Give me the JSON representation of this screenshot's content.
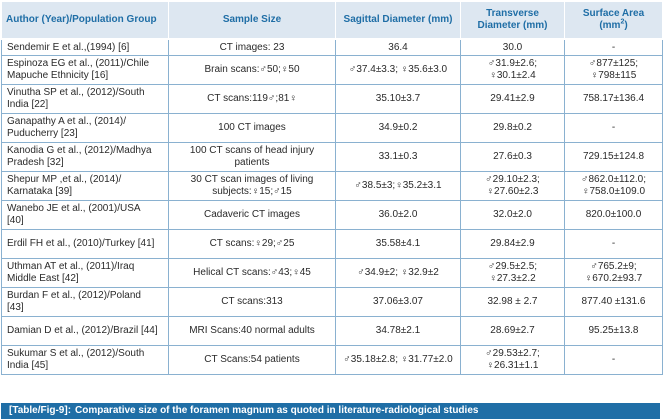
{
  "table": {
    "headers": {
      "author": "Author (Year)/Population Group",
      "sample": "Sample Size",
      "sagittal": "Sagittal Diameter (mm)",
      "transverse": "Transverse Diameter (mm)",
      "surface": "Surface Area",
      "surface_unit": "(mm",
      "surface_unit_sup": "2",
      "surface_unit_close": ")"
    },
    "rows": [
      {
        "author": "Sendemir E et al.,(1994) [6]",
        "sample": "CT images: 23",
        "sagittal": "36.4",
        "transverse": "30.0",
        "surface": "-"
      },
      {
        "author": "Espinoza EG et al., (2011)/Chile\nMapuche Ethnicity [16]",
        "sample": "Brain scans:♂50;♀50",
        "sagittal": "♂37.4±3.3; ♀35.6±3.0",
        "transverse": "♂31.9±2.6;\n♀30.1±2.4",
        "surface": "♂877±125;\n♀798±115"
      },
      {
        "author": "Vinutha SP et al., (2012)/South\nIndia [22]",
        "sample": "CT scans:119♂;81♀",
        "sagittal": "35.10±3.7",
        "transverse": "29.41±2.9",
        "surface": "758.17±136.4"
      },
      {
        "author": "Ganapathy A et al., (2014)/\nPuducherry [23]",
        "sample": "100 CT images",
        "sagittal": "34.9±0.2",
        "transverse": "29.8±0.2",
        "surface": "-"
      },
      {
        "author": "Kanodia G et al., (2012)/Madhya\nPradesh [32]",
        "sample": "100 CT scans of head injury\npatients",
        "sagittal": "33.1±0.3",
        "transverse": "27.6±0.3",
        "surface": "729.15±124.8"
      },
      {
        "author": "Shepur MP ,et al., (2014)/\nKarnataka [39]",
        "sample": "30 CT scan images of living\nsubjects:♀15;♂15",
        "sagittal": "♂38.5±3;♀35.2±3.1",
        "transverse": "♂29.10±2.3;\n♀27.60±2.3",
        "surface": "♂862.0±112.0;\n♀758.0±109.0"
      },
      {
        "author": "Wanebo JE et al., (2001)/USA\n[40]",
        "sample": "Cadaveric CT images",
        "sagittal": "36.0±2.0",
        "transverse": "32.0±2.0",
        "surface": "820.0±100.0"
      },
      {
        "author": "Erdil FH et al., (2010)/Turkey [41]",
        "sample": "CT scans:♀29;♂25",
        "sagittal": "35.58±4.1",
        "transverse": "29.84±2.9",
        "surface": "-"
      },
      {
        "author": "Uthman AT et al., (2011)/Iraq\nMiddle East [42]",
        "sample": "Helical CT scans:♂43;♀45",
        "sagittal": "♂34.9±2; ♀32.9±2",
        "transverse": "♂29.5±2.5;\n♀27.3±2.2",
        "surface": "♂765.2±9;\n♀670.2±93.7"
      },
      {
        "author": "Burdan F et al., (2012)/Poland\n[43]",
        "sample": "CT scans:313",
        "sagittal": "37.06±3.07",
        "transverse": "32.98 ± 2.7",
        "surface": "877.40 ±131.6"
      },
      {
        "author": "Damian D et al., (2012)/Brazil [44]",
        "sample": "MRI Scans:40 normal adults",
        "sagittal": "34.78±2.1",
        "transverse": "28.69±2.7",
        "surface": "95.25±13.8"
      },
      {
        "author": "Sukumar S et al., (2012)/South\nIndia [45]",
        "sample": "CT Scans:54 patients",
        "sagittal": "♂35.18±2.8; ♀31.77±2.0",
        "transverse": "♂29.53±2.7;\n♀26.31±1.1",
        "surface": "-"
      }
    ]
  },
  "caption": {
    "label": "[Table/Fig-9]:",
    "text": "Comparative size of the foramen magnum as quoted in literature-radiological studies"
  },
  "colors": {
    "header_bg": "#dde7f1",
    "header_text": "#1f6ea6",
    "grid": "#8ab1d0",
    "caption_bg": "#1f6ea6"
  }
}
